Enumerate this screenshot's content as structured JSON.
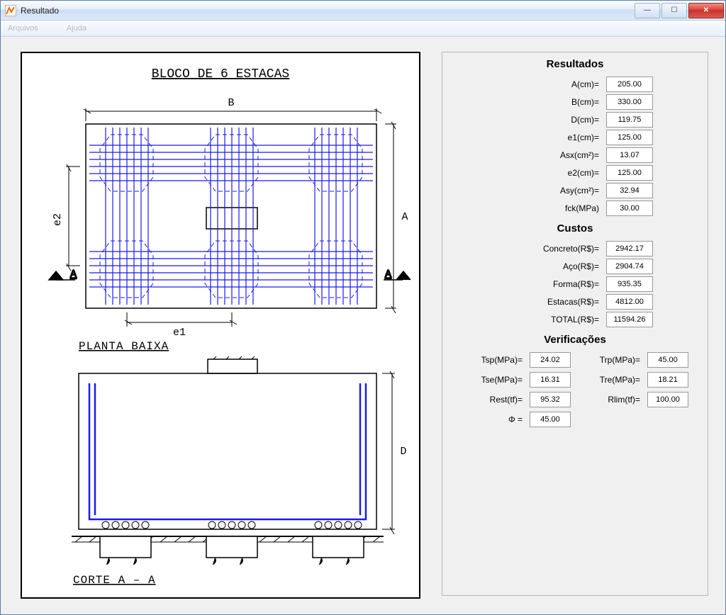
{
  "window": {
    "title": "Resultado",
    "menu": [
      "",
      "Arquivos",
      "Ajuda"
    ]
  },
  "drawing": {
    "title": "BLOCO DE 6 ESTACAS",
    "plan_label": "PLANTA BAIXA",
    "section_label": "CORTE A – A",
    "dim_B": "B",
    "dim_A": "A",
    "dim_D": "D",
    "dim_e1": "e1",
    "dim_e2": "e2",
    "cut_mark": "A",
    "colors": {
      "outline": "#000000",
      "rebar": "#1a1af0",
      "pile": "#1a1af0",
      "hatch": "#000000"
    }
  },
  "results": {
    "heading": "Resultados",
    "fields": [
      {
        "label": "A(cm)=",
        "value": "205.00"
      },
      {
        "label": "B(cm)=",
        "value": "330.00"
      },
      {
        "label": "D(cm)=",
        "value": "119.75"
      },
      {
        "label": "e1(cm)=",
        "value": "125.00"
      },
      {
        "label": "Asx(cm²)=",
        "value": "13.07"
      },
      {
        "label": "e2(cm)=",
        "value": "125.00"
      },
      {
        "label": "Asy(cm²)=",
        "value": "32.94"
      },
      {
        "label": "fck(MPa)",
        "value": "30.00"
      }
    ]
  },
  "costs": {
    "heading": "Custos",
    "fields": [
      {
        "label": "Concreto(R$)=",
        "value": "2942.17"
      },
      {
        "label": "Aço(R$)=",
        "value": "2904.74"
      },
      {
        "label": "Forma(R$)=",
        "value": "935.35"
      },
      {
        "label": "Estacas(R$)=",
        "value": "4812.00"
      },
      {
        "label": "TOTAL(R$)=",
        "value": "11594.26"
      }
    ]
  },
  "verifications": {
    "heading": "Verificações",
    "rows": [
      {
        "l_label": "Tsp(MPa)=",
        "l_val": "24.02",
        "r_label": "Trp(MPa)=",
        "r_val": "45.00"
      },
      {
        "l_label": "Tse(MPa)=",
        "l_val": "16.31",
        "r_label": "Tre(MPa)=",
        "r_val": "18.21"
      },
      {
        "l_label": "Rest(tf)=",
        "l_val": "95.32",
        "r_label": "Rlim(tf)=",
        "r_val": "100.00"
      },
      {
        "l_label": "Φ =",
        "l_val": "45.00",
        "r_label": "",
        "r_val": ""
      }
    ]
  }
}
